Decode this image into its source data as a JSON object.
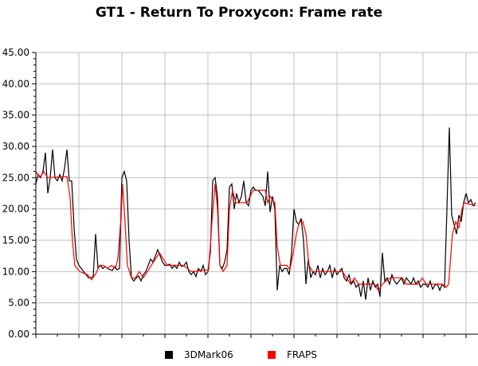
{
  "chart_data": {
    "type": "line",
    "title": "GT1 - Return To Proxycon: Frame rate",
    "xlabel": "",
    "ylabel": "",
    "ylim": [
      0,
      45
    ],
    "yticks": [
      "0.00",
      "5.00",
      "10.00",
      "15.00",
      "20.00",
      "25.00",
      "30.00",
      "35.00",
      "40.00",
      "45.00"
    ],
    "xlim": [
      0,
      185
    ],
    "x_tick_labels": "none",
    "grid": true,
    "legend": "bottom",
    "series": [
      {
        "name": "3DMark06",
        "color": "#000000",
        "values": [
          24,
          25.5,
          25,
          26,
          29,
          22.5,
          25,
          29.5,
          25,
          24.5,
          25.5,
          24.5,
          26.5,
          29.5,
          24.5,
          24.5,
          17,
          12,
          11,
          10.5,
          10,
          9.5,
          9,
          9,
          9.2,
          16,
          10.5,
          11,
          10.5,
          10.8,
          10.5,
          10.3,
          10.2,
          10.8,
          10.3,
          10.5,
          25,
          26,
          24.5,
          15,
          9,
          8.5,
          9,
          9.3,
          8.5,
          9.5,
          10,
          11,
          12,
          11.5,
          12.5,
          13.5,
          12.5,
          11.5,
          11,
          11,
          11.2,
          10.5,
          11,
          10.5,
          11.5,
          10.8,
          11,
          11.5,
          10,
          9.5,
          10,
          9.2,
          10.5,
          10,
          11,
          9.5,
          10,
          13,
          24.5,
          25,
          22,
          11,
          10.5,
          11.5,
          13.5,
          23.5,
          24,
          20,
          22.5,
          21,
          22,
          24.5,
          21,
          20.5,
          23,
          23.5,
          23,
          23,
          22.5,
          22,
          20.5,
          26,
          19.5,
          22,
          20,
          7,
          11,
          10,
          10.5,
          10.5,
          9.5,
          13,
          20,
          18,
          17.5,
          18.5,
          15,
          8,
          12,
          9,
          10,
          9.5,
          11,
          9,
          10.5,
          9.5,
          10,
          11,
          9,
          10.5,
          9.5,
          10,
          10.5,
          9,
          8.5,
          9.5,
          8,
          8.5,
          7.5,
          8,
          6,
          8.5,
          5.5,
          9,
          7,
          8.5,
          7.5,
          8,
          6,
          13,
          8.5,
          9,
          8,
          9.5,
          8.5,
          8,
          8.5,
          9,
          8,
          9,
          8.5,
          8,
          9,
          8,
          8.5,
          7.5,
          8,
          8,
          7.5,
          8.5,
          7.2,
          7.8,
          8,
          7,
          8,
          7.5,
          20,
          33,
          19,
          17.5,
          16,
          19,
          18,
          21,
          22.5,
          21,
          21.5,
          20.5,
          21
        ]
      },
      {
        "name": "FRAPS",
        "color": "#ff0000",
        "points": [
          [
            0,
            26
          ],
          [
            1.7,
            25
          ],
          [
            3.3,
            26
          ],
          [
            5,
            25
          ],
          [
            13,
            25.2
          ],
          [
            14.3,
            22
          ],
          [
            15.3,
            15
          ],
          [
            16.3,
            11
          ],
          [
            18.3,
            10
          ],
          [
            21.7,
            9.5
          ],
          [
            23.3,
            8.7
          ],
          [
            25,
            9.6
          ],
          [
            26.7,
            11
          ],
          [
            28.3,
            11
          ],
          [
            30,
            10.5
          ],
          [
            31.7,
            11
          ],
          [
            33.3,
            10.5
          ],
          [
            34.3,
            12
          ],
          [
            35.7,
            19
          ],
          [
            36.3,
            24
          ],
          [
            37.3,
            18
          ],
          [
            38.3,
            11
          ],
          [
            40,
            9
          ],
          [
            41.7,
            9
          ],
          [
            43.3,
            10
          ],
          [
            45,
            9
          ],
          [
            46.7,
            10
          ],
          [
            48.3,
            11
          ],
          [
            51.7,
            13
          ],
          [
            55,
            11
          ],
          [
            61.7,
            11
          ],
          [
            65,
            10
          ],
          [
            72.3,
            10.3
          ],
          [
            73.7,
            18
          ],
          [
            75,
            24
          ],
          [
            76,
            20
          ],
          [
            77,
            11
          ],
          [
            78.3,
            10
          ],
          [
            80,
            11
          ],
          [
            81,
            20
          ],
          [
            82.3,
            23
          ],
          [
            83.7,
            21
          ],
          [
            88.3,
            21
          ],
          [
            91,
            23
          ],
          [
            96,
            23
          ],
          [
            97,
            21
          ],
          [
            98,
            22
          ],
          [
            100,
            21
          ],
          [
            101,
            14
          ],
          [
            102.3,
            11
          ],
          [
            105,
            11
          ],
          [
            106.3,
            10.3
          ],
          [
            107.7,
            13
          ],
          [
            109,
            16
          ],
          [
            110.3,
            18
          ],
          [
            111.7,
            18
          ],
          [
            113,
            16
          ],
          [
            114.3,
            11
          ],
          [
            115.7,
            10
          ],
          [
            128.3,
            10
          ],
          [
            130,
            9
          ],
          [
            131.7,
            8
          ],
          [
            133.3,
            9
          ],
          [
            135,
            8
          ],
          [
            141.7,
            8
          ],
          [
            143.3,
            7
          ],
          [
            145,
            8
          ],
          [
            148.3,
            9
          ],
          [
            153.3,
            9
          ],
          [
            155,
            8
          ],
          [
            160,
            8
          ],
          [
            161.7,
            9
          ],
          [
            163.3,
            8
          ],
          [
            170,
            8
          ],
          [
            171.7,
            7.5
          ],
          [
            172.7,
            8
          ],
          [
            174.3,
            16
          ],
          [
            175.7,
            18
          ],
          [
            177,
            17
          ],
          [
            178.3,
            20
          ],
          [
            179.3,
            21
          ],
          [
            184,
            20.5
          ]
        ]
      }
    ]
  }
}
